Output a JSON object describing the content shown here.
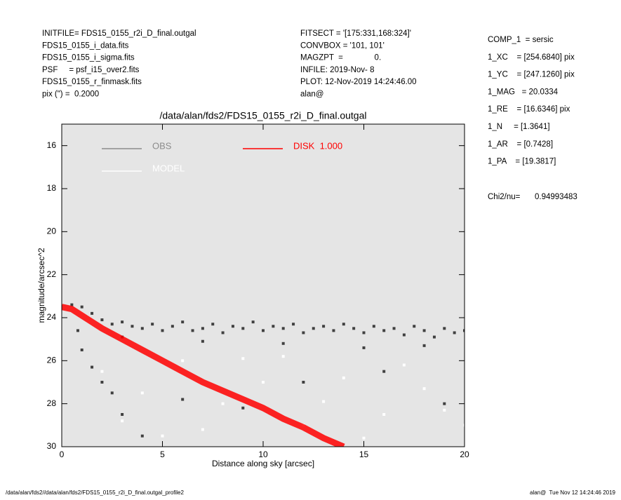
{
  "header": {
    "left": [
      "INITFILE= FDS15_0155_r2i_D_final.outgal",
      "FDS15_0155_i_data.fits",
      "FDS15_0155_i_sigma.fits",
      "PSF     = psf_i15_over2.fits",
      "FDS15_0155_r_finmask.fits",
      "pix (\") =  0.2000"
    ],
    "middle": [
      "FITSECT = '[175:331,168:324]'",
      "CONVBOX = '101, 101'",
      "MAGZPT  =              0.",
      "INFILE: 2019-Nov- 8",
      "PLOT: 12-Nov-2019 14:24:46.00",
      "alan@"
    ],
    "right": [
      "COMP_1  = sersic",
      "1_XC    = [254.6840] pix",
      "1_YC    = [247.1260] pix",
      "1_MAG   = 20.0334",
      "1_RE    = [16.6346] pix",
      "1_N     = [1.3641]",
      "1_AR    = [0.7428]",
      "1_PA    = [19.3817]"
    ],
    "chi2_label": "Chi2/nu=",
    "chi2_value": "0.94993483"
  },
  "footer": {
    "left": "/data/alan/fds2//data/alan/fds2/FDS15_0155_r2i_D_final.outgal_profile2",
    "right": "alan@  Tue Nov 12 14:24:46 2019"
  },
  "chart_data": {
    "type": "scatter",
    "title": "/data/alan/fds2/FDS15_0155_r2i_D_final.outgal",
    "x_label": "Distance along sky [arcsec]",
    "y_label": "magnitude/arcsec^2",
    "xlim": [
      0,
      20
    ],
    "xticks": [
      0,
      5,
      10,
      15,
      20
    ],
    "ylim": [
      30,
      15
    ],
    "yticks": [
      16,
      18,
      20,
      22,
      24,
      26,
      28,
      30
    ],
    "plot_background": "#e5e5e5",
    "series": [
      {
        "name": "OBS",
        "color": "#8c8c8c",
        "point_color": "#404040",
        "mode": "points",
        "x": [
          0.5,
          1,
          1.5,
          2,
          2.5,
          3,
          3.5,
          4,
          4.5,
          5,
          5.5,
          6,
          6.5,
          7,
          7.5,
          8,
          8.5,
          9,
          9.5,
          10,
          10.5,
          11,
          11.5,
          12,
          12.5,
          13,
          13.5,
          14,
          14.5,
          15,
          15.5,
          16,
          16.5,
          17,
          17.5,
          18,
          18.5,
          19,
          19.5,
          20,
          1,
          1.5,
          2,
          2.5,
          3,
          4,
          6,
          9,
          12,
          16,
          19,
          0.8,
          3,
          7,
          11,
          15,
          18
        ],
        "values": [
          23.4,
          23.5,
          23.8,
          24.1,
          24.3,
          24.2,
          24.4,
          24.5,
          24.3,
          24.6,
          24.4,
          24.2,
          24.6,
          24.5,
          24.3,
          24.7,
          24.4,
          24.5,
          24.2,
          24.6,
          24.4,
          24.5,
          24.3,
          24.7,
          24.5,
          24.4,
          24.6,
          24.3,
          24.5,
          24.7,
          24.4,
          24.6,
          24.5,
          24.8,
          24.4,
          24.6,
          24.9,
          24.5,
          24.7,
          24.6,
          25.5,
          26.3,
          27,
          27.5,
          28.5,
          29.5,
          27.8,
          28.2,
          27,
          26.5,
          28,
          24.6,
          24.9,
          25.1,
          25.2,
          25.4,
          25.3
        ]
      },
      {
        "name": "MODEL",
        "color": "#ffffff",
        "point_color": "#ffffff",
        "mode": "points",
        "x": [
          2,
          4,
          6,
          8,
          10,
          12,
          14,
          16,
          18,
          20,
          5,
          11,
          3,
          7,
          9,
          13,
          15,
          17,
          19
        ],
        "values": [
          26.5,
          27.5,
          26,
          28,
          27,
          29,
          26.8,
          28.5,
          27.3,
          29,
          29.5,
          25.8,
          28.8,
          29.2,
          25.9,
          27.9,
          29.6,
          26.2,
          28.3
        ]
      },
      {
        "name": "DISK  1.000",
        "color": "#ff0000",
        "point_color": "#ff0000",
        "mode": "line",
        "x": [
          0,
          0.5,
          1,
          2,
          3,
          4,
          5,
          6,
          7,
          8,
          9,
          10,
          11,
          12,
          13,
          14
        ],
        "values": [
          23.5,
          23.6,
          23.9,
          24.5,
          25,
          25.5,
          26,
          26.5,
          27,
          27.4,
          27.8,
          28.2,
          28.7,
          29.1,
          29.6,
          30
        ]
      }
    ]
  }
}
